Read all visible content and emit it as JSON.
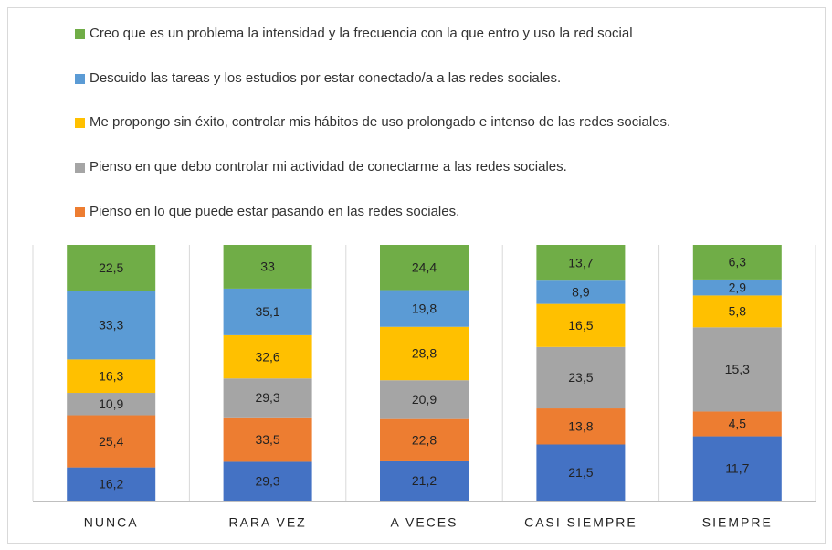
{
  "chart_data": {
    "type": "bar",
    "stacked": "percent",
    "categories": [
      "NUNCA",
      "RARA VEZ",
      "A VECES",
      "CASI SIEMPRE",
      "SIEMPRE"
    ],
    "series": [
      {
        "color": "#4472c4",
        "values": [
          16.2,
          29.3,
          21.2,
          21.5,
          11.7
        ],
        "value_labels": [
          "16,2",
          "29,3",
          "21,2",
          "21,5",
          "11,7"
        ]
      },
      {
        "name": "Pienso en lo que puede estar pasando en las redes sociales.",
        "color": "#ed7d31",
        "values": [
          25.4,
          33.5,
          22.8,
          13.8,
          4.5
        ],
        "value_labels": [
          "25,4",
          "33,5",
          "22,8",
          "13,8",
          "4,5"
        ]
      },
      {
        "name": "Pienso en que debo controlar mi actividad de conectarme a las redes sociales.",
        "color": "#a5a5a5",
        "values": [
          10.9,
          29.3,
          20.9,
          23.5,
          15.3
        ],
        "value_labels": [
          "10,9",
          "29,3",
          "20,9",
          "23,5",
          "15,3"
        ]
      },
      {
        "name": "Me propongo sin éxito, controlar mis hábitos de uso prolongado e intenso de las redes sociales.",
        "color": "#ffc000",
        "values": [
          16.3,
          32.6,
          28.8,
          16.5,
          5.8
        ],
        "value_labels": [
          "16,3",
          "32,6",
          "28,8",
          "16,5",
          "5,8"
        ]
      },
      {
        "name": "Descuido las tareas y los estudios por estar conectado/a a las redes sociales.",
        "color": "#5b9bd5",
        "values": [
          33.3,
          35.1,
          19.8,
          8.9,
          2.9
        ],
        "value_labels": [
          "33,3",
          "35,1",
          "19,8",
          "8,9",
          "2,9"
        ]
      },
      {
        "name": "Creo que es un problema la intensidad y la frecuencia con la que entro y uso la red social",
        "color": "#70ad47",
        "values": [
          22.5,
          33,
          24.4,
          13.7,
          6.3
        ],
        "value_labels": [
          "22,5",
          "33",
          "24,4",
          "13,7",
          "6,3"
        ]
      }
    ]
  }
}
